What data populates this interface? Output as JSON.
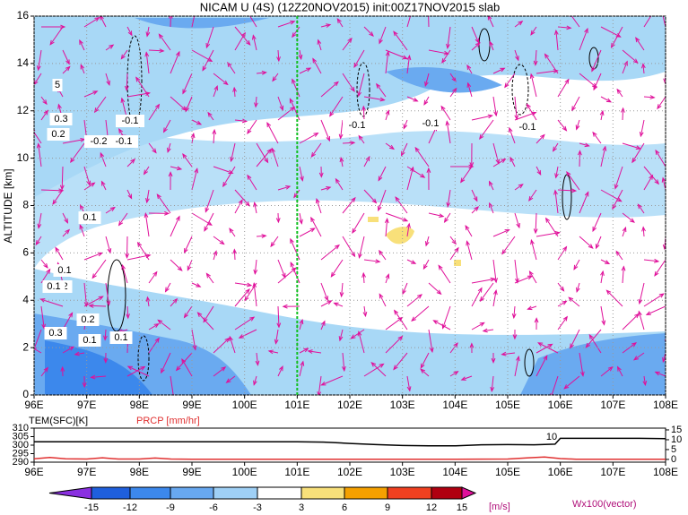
{
  "chart_data": [
    {
      "type": "contour",
      "title": "NICAM U (4S) (12Z20NOV2015) init:00Z17NOV2015 slab",
      "y_label": "ALTITUDE [km]",
      "xlim": [
        96,
        108
      ],
      "xticks": [
        {
          "value": 96,
          "label": "96E"
        },
        {
          "value": 97,
          "label": "97E"
        },
        {
          "value": 98,
          "label": "98E"
        },
        {
          "value": 99,
          "label": "99E"
        },
        {
          "value": 100,
          "label": "100E"
        },
        {
          "value": 101,
          "label": "101E"
        },
        {
          "value": 102,
          "label": "102E"
        },
        {
          "value": 103,
          "label": "103E"
        },
        {
          "value": 104,
          "label": "104E"
        },
        {
          "value": 105,
          "label": "105E"
        },
        {
          "value": 106,
          "label": "106E"
        },
        {
          "value": 107,
          "label": "107E"
        },
        {
          "value": 108,
          "label": "108E"
        }
      ],
      "ylim": [
        0,
        16
      ],
      "yticks": [
        0,
        2,
        4,
        6,
        8,
        10,
        12,
        14,
        16
      ],
      "grid": true,
      "marker_x": 101,
      "annotations": [
        "-0.1",
        "-0.2",
        "-0.1",
        "0.1",
        "0.2",
        "0.1",
        "0.1",
        "0.2",
        "0.1",
        "0.1",
        "-0.1",
        "-0.1",
        "-0.1",
        "5",
        "0.3",
        "0.2",
        "0.3"
      ]
    },
    {
      "type": "line",
      "series": [
        {
          "name": "TEM(SFC)[K]",
          "color": "#000000",
          "x": [
            96,
            97,
            98,
            99,
            100,
            101,
            101.5,
            102,
            102.5,
            103,
            103.5,
            104,
            104.5,
            105,
            105.5,
            105.9,
            106,
            106.5,
            107,
            107.5,
            108
          ],
          "values": [
            302,
            302,
            302,
            302,
            302,
            302,
            301.8,
            301,
            300.3,
            299.8,
            299.6,
            299.6,
            300.2,
            300.3,
            300.2,
            300.6,
            304,
            304,
            304,
            304,
            303.8
          ]
        },
        {
          "name": "PRCP [mm/hr]",
          "color": "#e03030",
          "axis": "y2",
          "x": [
            96,
            96.3,
            96.6,
            97,
            97.3,
            97.6,
            98,
            98.3,
            98.6,
            99,
            100,
            101,
            102,
            103,
            104,
            105,
            105.4,
            105.7,
            106,
            106.3,
            107,
            108
          ],
          "values": [
            0.3,
            1,
            0.3,
            0.2,
            0.8,
            0.2,
            0.2,
            0.7,
            0.2,
            0.1,
            0.1,
            0.1,
            0.1,
            0.1,
            0.1,
            0.2,
            0.8,
            1.2,
            0.4,
            0.1,
            0.1,
            0.1
          ]
        }
      ],
      "xlim": [
        96,
        108
      ],
      "xticks": [
        {
          "value": 96,
          "label": "96E"
        },
        {
          "value": 97,
          "label": "97E"
        },
        {
          "value": 98,
          "label": "98E"
        },
        {
          "value": 99,
          "label": "99E"
        },
        {
          "value": 100,
          "label": "100E"
        },
        {
          "value": 101,
          "label": "101E"
        },
        {
          "value": 102,
          "label": "102E"
        },
        {
          "value": 103,
          "label": "103E"
        },
        {
          "value": 104,
          "label": "104E"
        },
        {
          "value": 105,
          "label": "105E"
        },
        {
          "value": 106,
          "label": "106E"
        },
        {
          "value": 107,
          "label": "107E"
        },
        {
          "value": 108,
          "label": "108E"
        }
      ],
      "ylim": [
        290,
        310
      ],
      "yticks": [
        290,
        295,
        300,
        305,
        310
      ],
      "y2lim": [
        -1.4,
        15.9
      ],
      "y2ticks": [
        0,
        5,
        10,
        15
      ],
      "annotation": "10"
    },
    {
      "type": "colorbar",
      "levels": [
        -15,
        -12,
        -9,
        -6,
        -3,
        3,
        6,
        9,
        12,
        15
      ],
      "colors": [
        "#8a30e0",
        "#1f5fdd",
        "#3c88ec",
        "#68a8f0",
        "#9fd0f6",
        "#ffffff",
        "#f8e07a",
        "#f5a000",
        "#f04020",
        "#b00010",
        "#e0109a"
      ],
      "unit": "[m/s]",
      "vector_label": "Wx100(vector)"
    }
  ]
}
